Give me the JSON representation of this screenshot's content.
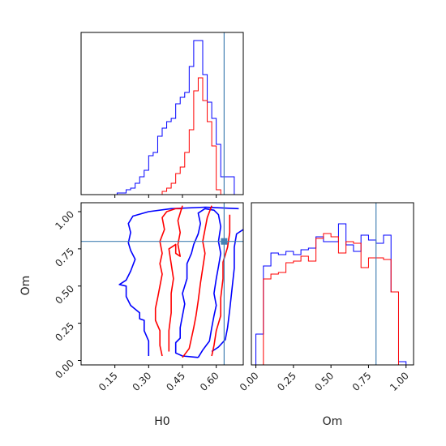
{
  "chart_data": {
    "type": "corner",
    "parameters": [
      "H0",
      "Om"
    ],
    "truths": {
      "H0": 0.635,
      "Om": 0.8
    },
    "colors": {
      "run_1": "#0000ff",
      "run_2": "#ff0000",
      "truth": "#4682b4"
    },
    "grid": false,
    "panels": {
      "h0_marginal": {
        "type": "step-histogram",
        "xlim": [
          0.0,
          0.72
        ],
        "bin_edges": [
          0.1,
          0.12,
          0.14,
          0.16,
          0.18,
          0.2,
          0.22,
          0.24,
          0.26,
          0.28,
          0.3,
          0.32,
          0.34,
          0.36,
          0.38,
          0.4,
          0.42,
          0.44,
          0.46,
          0.48,
          0.5,
          0.52,
          0.54,
          0.56,
          0.58,
          0.6,
          0.62,
          0.64,
          0.66,
          0.68,
          0.7
        ],
        "series": [
          {
            "counts": [
              0.0,
              0.0,
              0.0,
              0.01,
              0.01,
              0.03,
              0.04,
              0.07,
              0.11,
              0.15,
              0.24,
              0.26,
              0.36,
              0.41,
              0.45,
              0.47,
              0.56,
              0.6,
              0.63,
              0.79,
              0.95,
              0.95,
              0.74,
              0.57,
              0.47,
              0.31,
              0.11,
              0.11,
              0.11,
              0.0
            ]
          },
          {
            "counts": [
              0.0,
              0.0,
              0.0,
              0.0,
              0.0,
              0.0,
              0.0,
              0.0,
              0.0,
              0.0,
              0.0,
              0.0,
              0.0,
              0.02,
              0.04,
              0.07,
              0.13,
              0.17,
              0.26,
              0.4,
              0.64,
              0.72,
              0.58,
              0.45,
              0.3,
              0.03,
              0.0,
              0.0,
              0.0,
              0.0
            ]
          }
        ]
      },
      "om_marginal": {
        "type": "step-histogram",
        "xlim": [
          -0.03,
          1.05
        ],
        "ylim": [
          0,
          1
        ],
        "bin_edges": [
          0.0,
          0.05,
          0.1,
          0.15,
          0.2,
          0.25,
          0.3,
          0.35,
          0.4,
          0.45,
          0.5,
          0.55,
          0.6,
          0.65,
          0.7,
          0.75,
          0.8,
          0.85,
          0.9,
          0.95,
          1.0
        ],
        "series": [
          {
            "counts": [
              0.19,
              0.61,
              0.69,
              0.68,
              0.7,
              0.68,
              0.71,
              0.72,
              0.79,
              0.76,
              0.76,
              0.87,
              0.74,
              0.7,
              0.8,
              0.77,
              0.75,
              0.8,
              0.45,
              0.02
            ]
          },
          {
            "counts": [
              0.0,
              0.53,
              0.56,
              0.57,
              0.63,
              0.64,
              0.67,
              0.64,
              0.78,
              0.81,
              0.79,
              0.69,
              0.76,
              0.75,
              0.6,
              0.66,
              0.66,
              0.65,
              0.45,
              0.0
            ]
          }
        ]
      },
      "joint": {
        "type": "contour",
        "xlim": [
          0.0,
          0.72
        ],
        "ylim": [
          -0.03,
          1.06
        ],
        "contours": [
          {
            "series": 0,
            "points": [
              [
                0.3,
                0.03
              ],
              [
                0.3,
                0.13
              ],
              [
                0.28,
                0.2
              ],
              [
                0.28,
                0.27
              ],
              [
                0.26,
                0.28
              ],
              [
                0.26,
                0.32
              ],
              [
                0.22,
                0.37
              ],
              [
                0.2,
                0.43
              ],
              [
                0.2,
                0.5
              ],
              [
                0.17,
                0.51
              ],
              [
                0.2,
                0.54
              ],
              [
                0.22,
                0.6
              ],
              [
                0.24,
                0.68
              ],
              [
                0.22,
                0.74
              ],
              [
                0.21,
                0.79
              ],
              [
                0.22,
                0.86
              ],
              [
                0.21,
                0.92
              ],
              [
                0.23,
                0.97
              ],
              [
                0.3,
                1.0
              ],
              [
                0.4,
                1.02
              ],
              [
                0.55,
                1.03
              ],
              [
                0.7,
                1.02
              ]
            ]
          },
          {
            "series": 0,
            "points": [
              [
                0.52,
                0.02
              ],
              [
                0.54,
                0.07
              ],
              [
                0.57,
                0.13
              ],
              [
                0.58,
                0.22
              ],
              [
                0.59,
                0.3
              ],
              [
                0.6,
                0.37
              ],
              [
                0.59,
                0.45
              ],
              [
                0.6,
                0.55
              ],
              [
                0.61,
                0.63
              ],
              [
                0.62,
                0.72
              ],
              [
                0.61,
                0.8
              ],
              [
                0.62,
                0.9
              ],
              [
                0.61,
                0.98
              ],
              [
                0.59,
                1.01
              ],
              [
                0.55,
                1.02
              ],
              [
                0.52,
                0.99
              ],
              [
                0.53,
                0.92
              ],
              [
                0.52,
                0.85
              ],
              [
                0.5,
                0.78
              ],
              [
                0.49,
                0.72
              ],
              [
                0.47,
                0.65
              ],
              [
                0.47,
                0.55
              ],
              [
                0.45,
                0.45
              ],
              [
                0.46,
                0.38
              ],
              [
                0.45,
                0.3
              ],
              [
                0.44,
                0.22
              ],
              [
                0.44,
                0.15
              ],
              [
                0.42,
                0.12
              ],
              [
                0.42,
                0.05
              ],
              [
                0.45,
                0.03
              ],
              [
                0.52,
                0.02
              ]
            ]
          },
          {
            "series": 0,
            "points": [
              [
                0.72,
                0.88
              ],
              [
                0.69,
                0.85
              ],
              [
                0.68,
                0.76
              ],
              [
                0.68,
                0.62
              ],
              [
                0.67,
                0.48
              ],
              [
                0.66,
                0.34
              ],
              [
                0.65,
                0.22
              ],
              [
                0.64,
                0.14
              ],
              [
                0.61,
                0.09
              ],
              [
                0.58,
                0.06
              ]
            ]
          },
          {
            "series": 1,
            "points": [
              [
                0.36,
                0.03
              ],
              [
                0.35,
                0.1
              ],
              [
                0.35,
                0.2
              ],
              [
                0.33,
                0.27
              ],
              [
                0.33,
                0.35
              ],
              [
                0.34,
                0.42
              ],
              [
                0.35,
                0.5
              ],
              [
                0.36,
                0.58
              ],
              [
                0.35,
                0.65
              ],
              [
                0.36,
                0.72
              ],
              [
                0.35,
                0.8
              ],
              [
                0.37,
                0.88
              ],
              [
                0.36,
                0.96
              ],
              [
                0.38,
                1.0
              ],
              [
                0.42,
                1.02
              ],
              [
                0.45,
                1.02
              ]
            ]
          },
          {
            "series": 1,
            "points": [
              [
                0.39,
                0.06
              ],
              [
                0.39,
                0.2
              ],
              [
                0.4,
                0.32
              ],
              [
                0.4,
                0.45
              ],
              [
                0.41,
                0.55
              ],
              [
                0.4,
                0.65
              ],
              [
                0.39,
                0.75
              ],
              [
                0.42,
                0.78
              ],
              [
                0.42,
                0.72
              ],
              [
                0.44,
                0.7
              ],
              [
                0.43,
                0.78
              ],
              [
                0.44,
                0.86
              ],
              [
                0.43,
                0.94
              ],
              [
                0.45,
                1.04
              ]
            ]
          },
          {
            "series": 1,
            "points": [
              [
                0.45,
                0.02
              ],
              [
                0.48,
                0.08
              ],
              [
                0.49,
                0.15
              ],
              [
                0.5,
                0.22
              ],
              [
                0.51,
                0.3
              ],
              [
                0.52,
                0.4
              ],
              [
                0.53,
                0.52
              ],
              [
                0.54,
                0.62
              ],
              [
                0.55,
                0.72
              ],
              [
                0.54,
                0.8
              ],
              [
                0.55,
                0.88
              ],
              [
                0.56,
                0.96
              ],
              [
                0.58,
                1.04
              ]
            ]
          },
          {
            "series": 1,
            "points": [
              [
                0.58,
                0.03
              ],
              [
                0.59,
                0.1
              ],
              [
                0.6,
                0.2
              ],
              [
                0.62,
                0.3
              ],
              [
                0.62,
                0.42
              ],
              [
                0.63,
                0.55
              ],
              [
                0.63,
                0.66
              ],
              [
                0.65,
                0.76
              ],
              [
                0.66,
                0.86
              ],
              [
                0.66,
                0.98
              ]
            ]
          }
        ]
      }
    },
    "axes": {
      "h0": {
        "label": "H0",
        "ticks": [
          0.15,
          0.3,
          0.45,
          0.6
        ],
        "tick_labels": [
          "0.15",
          "0.30",
          "0.45",
          "0.60"
        ]
      },
      "om": {
        "label": "Om",
        "ticks": [
          0.0,
          0.25,
          0.5,
          0.75,
          1.0
        ],
        "tick_labels": [
          "0.00",
          "0.25",
          "0.50",
          "0.75",
          "1.00"
        ]
      }
    }
  }
}
